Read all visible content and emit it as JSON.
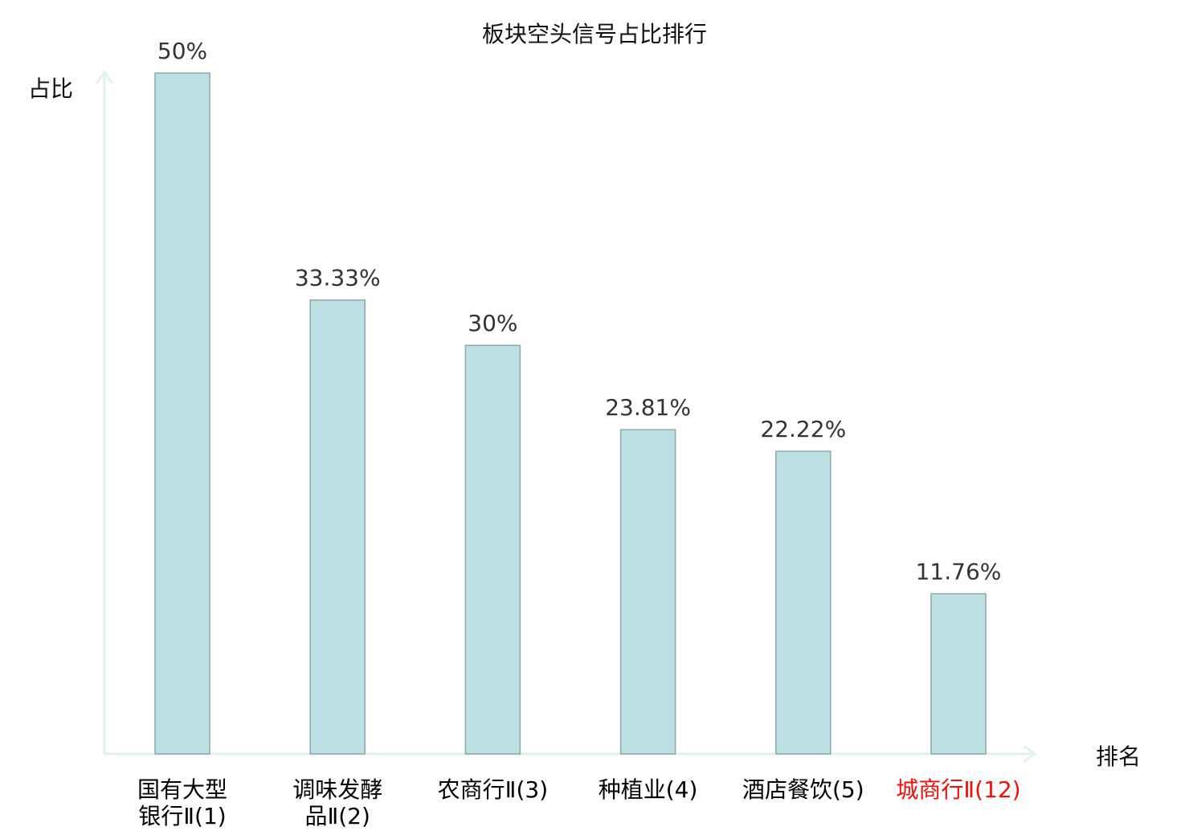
{
  "chart_data": {
    "type": "bar",
    "title": "板块空头信号占比排行",
    "xlabel": "排名",
    "ylabel": "占比",
    "categories": [
      [
        "国有大型",
        "银行Ⅱ(1)"
      ],
      [
        "调味发酵",
        "品Ⅱ(2)"
      ],
      [
        "农商行Ⅱ(3)"
      ],
      [
        "种植业(4)"
      ],
      [
        "酒店餐饮(5)"
      ],
      [
        "城商行Ⅱ(12)"
      ]
    ],
    "values": [
      50,
      33.33,
      30,
      23.81,
      22.22,
      11.76
    ],
    "data_labels": [
      "50%",
      "33.33%",
      "30%",
      "23.81%",
      "22.22%",
      "11.76%"
    ],
    "highlight_index": 5,
    "ylim": [
      0,
      50
    ],
    "grid": false,
    "colors": {
      "bar_fill": "#bce0e3",
      "bar_stroke": "#8aa8aa",
      "axis": "#dff2ef",
      "label": "#000000",
      "highlight_label": "#e8120c",
      "value_label": "#333333"
    }
  }
}
